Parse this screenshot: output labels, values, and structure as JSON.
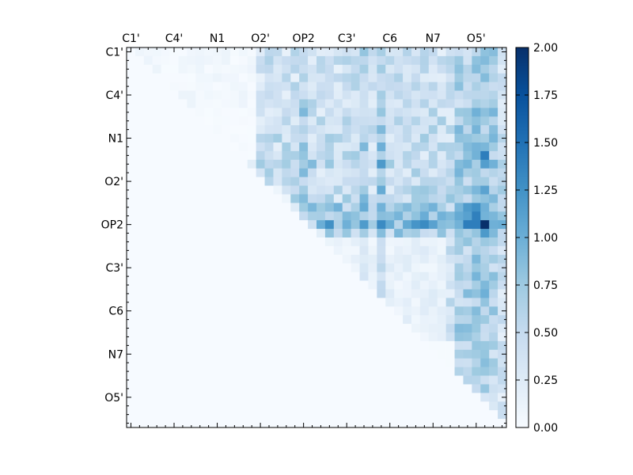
{
  "chart_data": {
    "type": "heatmap",
    "title": "",
    "xlabel": "",
    "ylabel": "",
    "grid": false,
    "n": 44,
    "x_ticks": [
      "C1'",
      "C4'",
      "N1",
      "O2'",
      "OP2",
      "C3'",
      "C6",
      "N7",
      "O5'"
    ],
    "y_ticks": [
      "C1'",
      "C4'",
      "N1",
      "O2'",
      "OP2",
      "C3'",
      "C6",
      "N7",
      "O5'"
    ],
    "tick_index": [
      0,
      5,
      10,
      15,
      20,
      25,
      30,
      35,
      40
    ],
    "colormap": "Blues",
    "colorbar": {
      "min": 0.0,
      "max": 2.0,
      "ticks": [
        "0.00",
        "0.25",
        "0.50",
        "0.75",
        "1.00",
        "1.25",
        "1.50",
        "1.75",
        "2.00"
      ]
    },
    "matrix_note_hidden": true
  }
}
